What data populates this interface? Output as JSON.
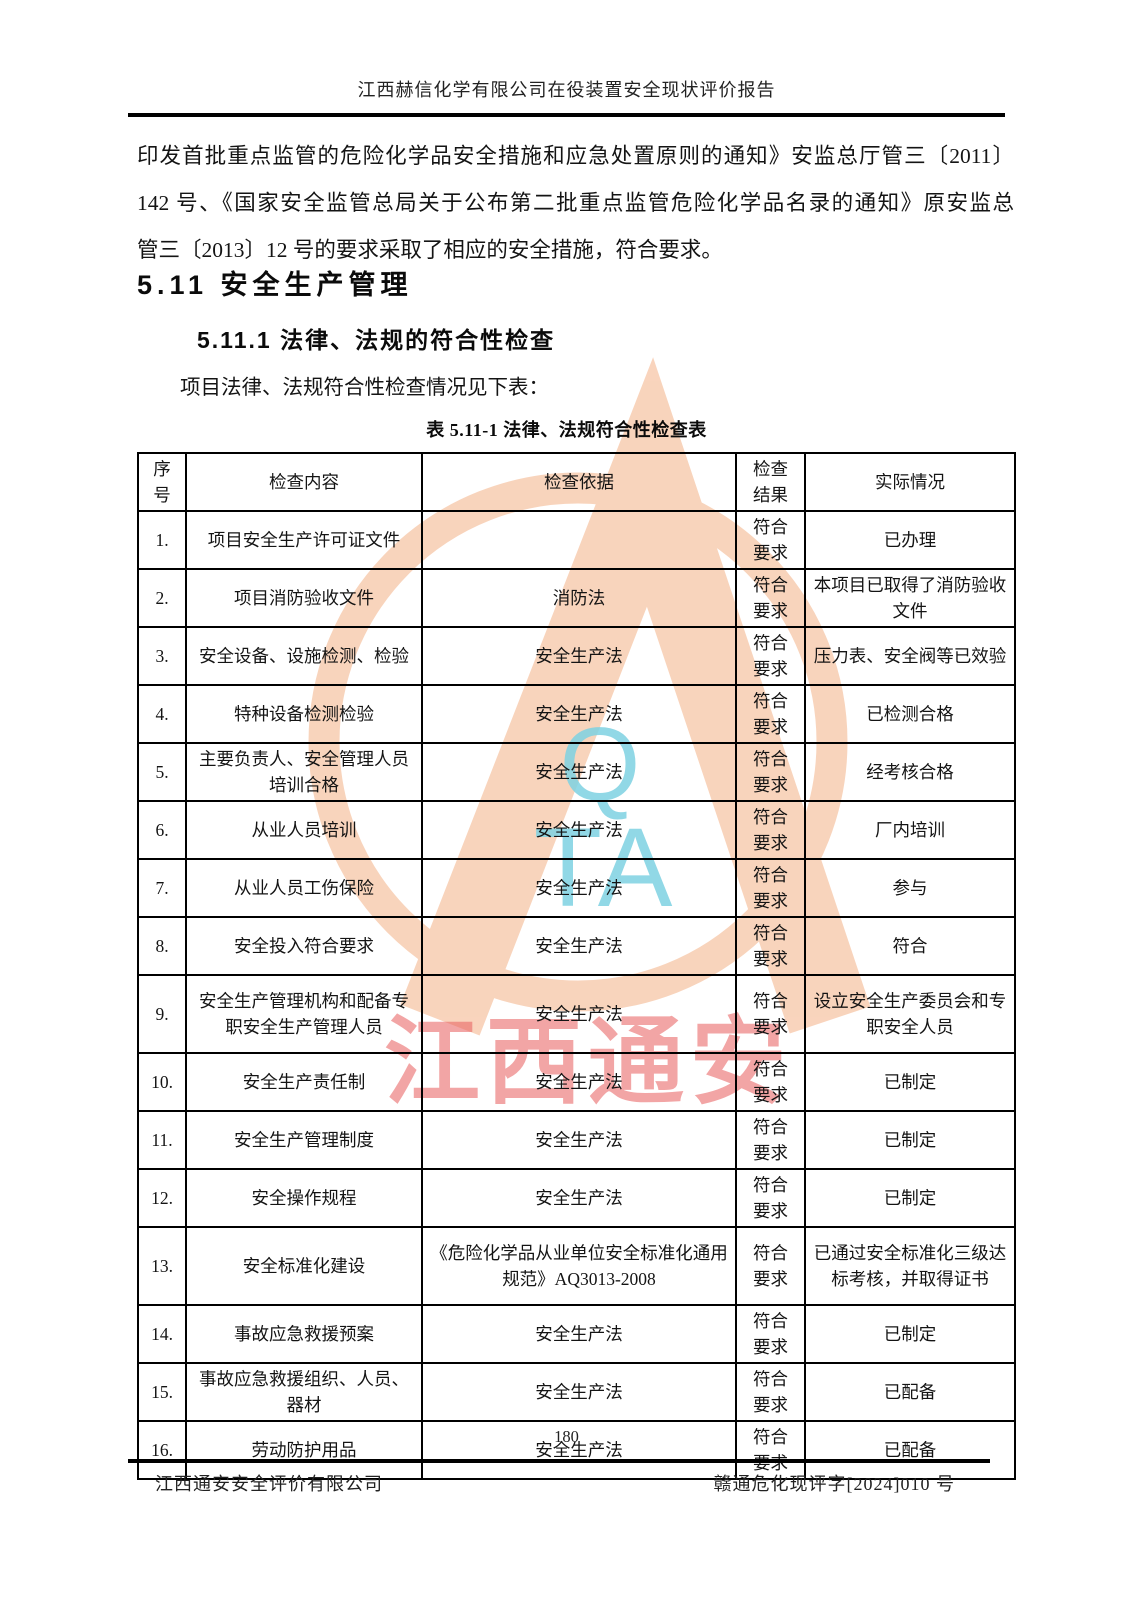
{
  "page": {
    "header_title": "江西赫信化学有限公司在役装置安全现状评价报告",
    "page_number": "180",
    "footer_left": "江西通安安全评价有限公司",
    "footer_right": "赣通危化现评字[2024]010 号"
  },
  "body": {
    "paragraph_lines": [
      "印发首批重点监管的危险化学品安全措施和应急处置原则的通知》安监总厅管三〔2011〕",
      "142 号、《国家安全监管总局关于公布第二批重点监管危险化学品名录的通知》原安监总",
      "管三〔2013〕12 号的要求采取了相应的安全措施，符合要求。"
    ],
    "heading_section": "5.11 安全生产管理",
    "heading_subsection": "5.11.1 法律、法规的符合性检查",
    "lead_text": "项目法律、法规符合性检查情况见下表：",
    "table_caption": "表 5.11-1 法律、法规符合性检查表"
  },
  "watermark": {
    "logo_letter_top": "Q",
    "logo_letters_bottom": "TA",
    "stamp_text": "江西通安",
    "ring_color": "#f7c8aa",
    "letter_color": "#7ed2e2",
    "stamp_color": "#e85d5d"
  },
  "table": {
    "headers": [
      "序号",
      "检查内容",
      "检查依据",
      "检查结果",
      "实际情况"
    ],
    "rows": [
      {
        "no": "1.",
        "content": "项目安全生产许可证文件",
        "basis": "",
        "result": "符合要求",
        "actual": "已办理"
      },
      {
        "no": "2.",
        "content": "项目消防验收文件",
        "basis": "消防法",
        "result": "符合要求",
        "actual": "本项目已取得了消防验收文件"
      },
      {
        "no": "3.",
        "content": "安全设备、设施检测、检验",
        "basis": "安全生产法",
        "result": "符合要求",
        "actual": "压力表、安全阀等已效验"
      },
      {
        "no": "4.",
        "content": "特种设备检测检验",
        "basis": "安全生产法",
        "result": "符合要求",
        "actual": "已检测合格"
      },
      {
        "no": "5.",
        "content": "主要负责人、安全管理人员培训合格",
        "basis": "安全生产法",
        "result": "符合要求",
        "actual": "经考核合格"
      },
      {
        "no": "6.",
        "content": "从业人员培训",
        "basis": "安全生产法",
        "result": "符合要求",
        "actual": "厂内培训"
      },
      {
        "no": "7.",
        "content": "从业人员工伤保险",
        "basis": "安全生产法",
        "result": "符合要求",
        "actual": "参与"
      },
      {
        "no": "8.",
        "content": "安全投入符合要求",
        "basis": "安全生产法",
        "result": "符合要求",
        "actual": "符合"
      },
      {
        "no": "9.",
        "content": "安全生产管理机构和配备专职安全生产管理人员",
        "basis": "安全生产法",
        "result": "符合要求",
        "actual": "设立安全生产委员会和专职安全人员",
        "tall": true
      },
      {
        "no": "10.",
        "content": "安全生产责任制",
        "basis": "安全生产法",
        "result": "符合要求",
        "actual": "已制定"
      },
      {
        "no": "11.",
        "content": "安全生产管理制度",
        "basis": "安全生产法",
        "result": "符合要求",
        "actual": "已制定"
      },
      {
        "no": "12.",
        "content": "安全操作规程",
        "basis": "安全生产法",
        "result": "符合要求",
        "actual": "已制定"
      },
      {
        "no": "13.",
        "content": "安全标准化建设",
        "basis": "《危险化学品从业单位安全标准化通用规范》AQ3013-2008",
        "result": "符合要求",
        "actual": "已通过安全标准化三级达标考核，并取得证书",
        "tall": true
      },
      {
        "no": "14.",
        "content": "事故应急救援预案",
        "basis": "安全生产法",
        "result": "符合要求",
        "actual": "已制定"
      },
      {
        "no": "15.",
        "content": "事故应急救援组织、人员、器材",
        "basis": "安全生产法",
        "result": "符合要求",
        "actual": "已配备"
      },
      {
        "no": "16.",
        "content": "劳动防护用品",
        "basis": "安全生产法",
        "result": "符合要求",
        "actual": "已配备"
      }
    ]
  }
}
